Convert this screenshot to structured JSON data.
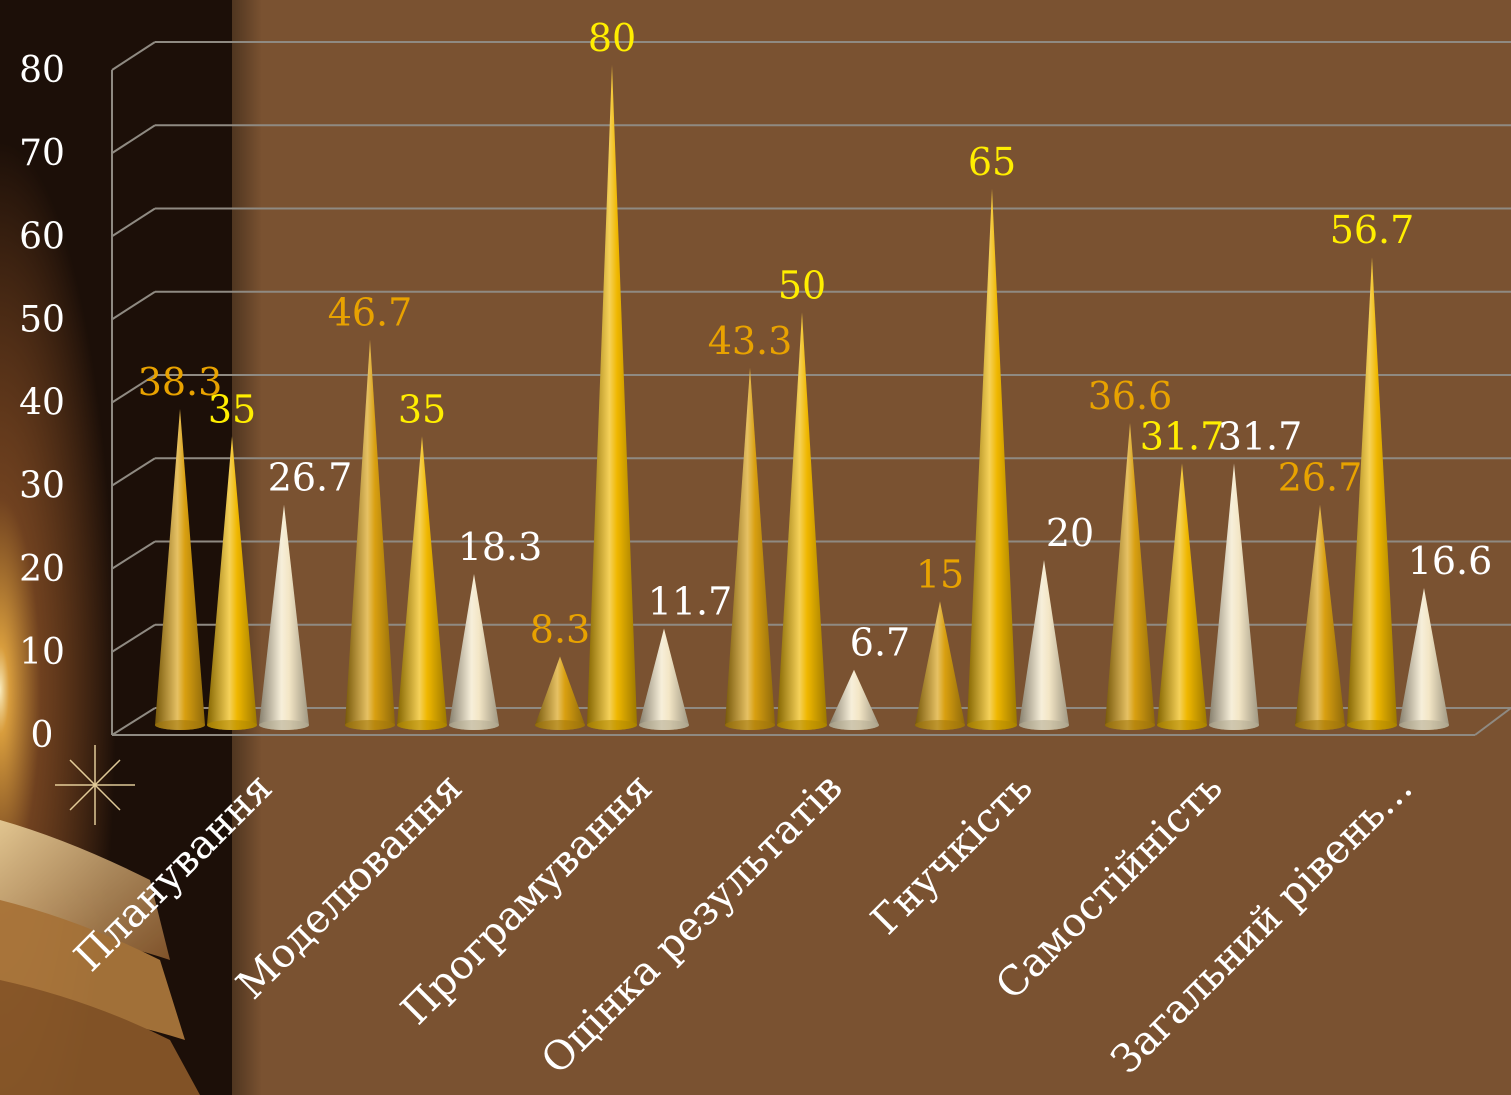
{
  "chart_data": {
    "type": "bar",
    "bar_shape": "cone-3d",
    "categories": [
      "Планування",
      "Моделювання",
      "Програмування",
      "Оцінка результатів",
      "Гнучкість",
      "Самостійність",
      "Загальний рівень..."
    ],
    "series": [
      {
        "values": [
          38.3,
          46.7,
          8.3,
          43.3,
          15,
          36.6,
          26.7
        ],
        "color": "#d9a010",
        "label_color": "#e8a200"
      },
      {
        "values": [
          35,
          35,
          80,
          50,
          65,
          31.7,
          56.7
        ],
        "color": "#f0b800",
        "label_color": "#ffee00"
      },
      {
        "values": [
          26.7,
          18.3,
          11.7,
          6.7,
          20,
          31.7,
          16.6
        ],
        "color": "#f3e6c6",
        "label_color": "#ffffff"
      }
    ],
    "value_labels": [
      [
        "38.3",
        "46.7",
        "8.3",
        "43.3",
        "15",
        "36.6",
        "26.7"
      ],
      [
        "35",
        "35",
        "80",
        "50",
        "65",
        "31.7",
        "56.7"
      ],
      [
        "26.7",
        "18.3",
        "11.7",
        "6.7",
        "20",
        "31.7",
        "16.6"
      ]
    ],
    "y_ticks": [
      "0",
      "10",
      "20",
      "30",
      "40",
      "50",
      "60",
      "70",
      "80"
    ],
    "ylim": [
      0,
      80
    ],
    "grid": true,
    "legend": "none",
    "colors": {
      "background": "#7a5231",
      "panel": "#7d5534",
      "gridline": "#8f8a82",
      "axis_text": "#ffffff"
    }
  }
}
